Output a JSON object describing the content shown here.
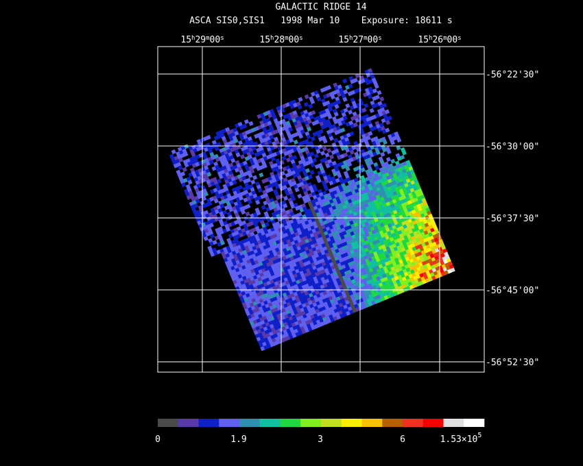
{
  "header": {
    "title": "GALACTIC RIDGE 14",
    "subtitle": "ASCA SIS0,SIS1   1998 Mar 10    Exposure: 18611 s"
  },
  "ra_units": [
    "h",
    "m",
    "s"
  ],
  "ra_labels": [
    {
      "hours": "15",
      "minutes": "29",
      "seconds": "00"
    },
    {
      "hours": "15",
      "minutes": "28",
      "seconds": "00"
    },
    {
      "hours": "15",
      "minutes": "27",
      "seconds": "00"
    },
    {
      "hours": "15",
      "minutes": "26",
      "seconds": "00"
    }
  ],
  "dec_labels": [
    "-56°22'30\"",
    "-56°30'00\"",
    "-56°37'30\"",
    "-56°45'00\"",
    "-56°52'30\""
  ],
  "colorbar": {
    "colors": [
      "#4a4a4a",
      "#5a3aa8",
      "#1020c8",
      "#6060f0",
      "#3090b0",
      "#10c0a0",
      "#20d840",
      "#80f020",
      "#c0e020",
      "#f8f000",
      "#f8c000",
      "#b86000",
      "#f03020",
      "#f80000",
      "#e0e0e0",
      "#ffffff"
    ],
    "labels": [
      "0",
      "1.9",
      "3",
      "6"
    ],
    "last_label": {
      "mantissa": "1.53×10",
      "exponent": "5"
    }
  }
}
